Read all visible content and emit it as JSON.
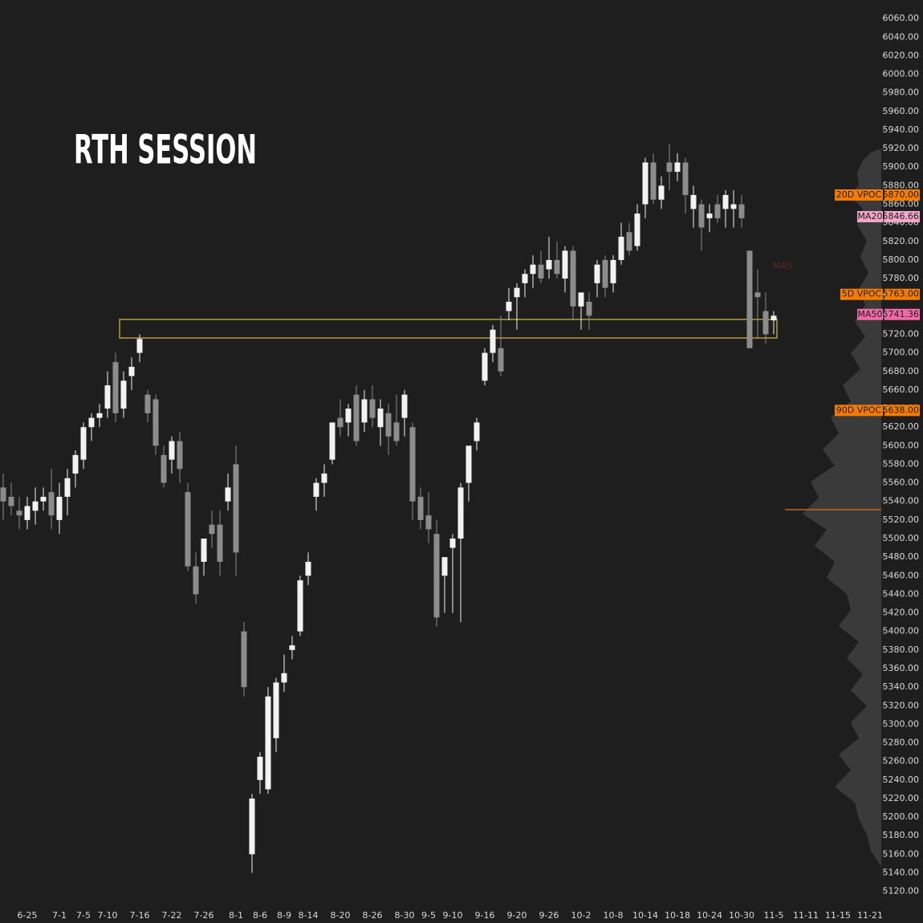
{
  "chart_data": {
    "type": "candlestick",
    "title": "RTH SESSION",
    "annotations": [
      "MA5"
    ],
    "categories": [
      null,
      null,
      null,
      "6-25",
      null,
      null,
      null,
      "7-1",
      null,
      null,
      "7-5",
      null,
      null,
      "7-10",
      null,
      null,
      null,
      "7-16",
      null,
      null,
      null,
      "7-22",
      null,
      null,
      null,
      "7-26",
      null,
      null,
      null,
      "8-1",
      null,
      null,
      "8-6",
      null,
      null,
      "8-9",
      null,
      null,
      "8-14",
      null,
      null,
      null,
      "8-20",
      null,
      null,
      null,
      "8-26",
      null,
      null,
      null,
      "8-30",
      null,
      null,
      "9-5",
      null,
      null,
      "9-10",
      null,
      null,
      null,
      "9-16",
      null,
      null,
      null,
      "9-20",
      null,
      null,
      null,
      "9-26",
      null,
      null,
      null,
      "10-2",
      null,
      null,
      null,
      "10-8",
      null,
      null,
      null,
      "10-14",
      null,
      null,
      null,
      "10-18",
      null,
      null,
      null,
      "10-24",
      null,
      null,
      null,
      "10-30",
      null,
      null,
      null,
      "11-5",
      null,
      null,
      null,
      "11-11",
      null,
      null,
      null,
      "11-15",
      null,
      null,
      null,
      "11-21"
    ],
    "open": [
      5555,
      5545,
      5530,
      5520,
      5530,
      5540,
      5550,
      5520,
      5545,
      5570,
      5585,
      5620,
      5630,
      5640,
      5690,
      5640,
      5675,
      5700,
      5655,
      5650,
      5590,
      5585,
      5605,
      5550,
      5470,
      5475,
      5515,
      5515,
      5540,
      5580,
      5400,
      5160,
      5240,
      5230,
      5285,
      5345,
      5380,
      5400,
      5460,
      5545,
      5560,
      5585,
      5630,
      5625,
      5655,
      5625,
      5650,
      5620,
      5635,
      5625,
      5630,
      5620,
      5545,
      5525,
      5505,
      5460,
      5490,
      5500,
      5560,
      5605,
      5670,
      5700,
      5705,
      5745,
      5760,
      5775,
      5785,
      5795,
      5790,
      5800,
      5780,
      5810,
      5750,
      5755,
      5775,
      5800,
      5775,
      5800,
      5830,
      5815,
      5860,
      5905,
      5865,
      5905,
      5895,
      5905,
      5855,
      5860,
      5845,
      5860,
      5855,
      5855,
      5860,
      5810,
      5765,
      5745,
      5735,
      null,
      null,
      null,
      null,
      null,
      null,
      null,
      null,
      null,
      null,
      null,
      null
    ],
    "high": [
      5570,
      5560,
      5545,
      5545,
      5555,
      5555,
      5575,
      5560,
      5575,
      5595,
      5625,
      5635,
      5645,
      5680,
      5700,
      5680,
      5695,
      5720,
      5660,
      5655,
      5600,
      5610,
      5615,
      5560,
      5485,
      5500,
      5530,
      5530,
      5570,
      5600,
      5410,
      5225,
      5270,
      5340,
      5350,
      5375,
      5395,
      5460,
      5485,
      5565,
      5580,
      5625,
      5650,
      5645,
      5665,
      5660,
      5665,
      5650,
      5645,
      5655,
      5660,
      5625,
      5555,
      5550,
      5520,
      5480,
      5505,
      5560,
      5600,
      5630,
      5705,
      5730,
      5740,
      5770,
      5775,
      5790,
      5805,
      5810,
      5825,
      5820,
      5815,
      5815,
      5765,
      5765,
      5800,
      5805,
      5805,
      5840,
      5840,
      5860,
      5910,
      5915,
      5890,
      5925,
      5915,
      5910,
      5880,
      5865,
      5860,
      5870,
      5875,
      5875,
      5870,
      5810,
      5790,
      5765,
      5745,
      null,
      null,
      null,
      null,
      null,
      null,
      null,
      null,
      null,
      null,
      null,
      null
    ],
    "low": [
      5520,
      5525,
      5510,
      5510,
      5515,
      5530,
      5510,
      5505,
      5525,
      5555,
      5575,
      5605,
      5620,
      5630,
      5625,
      5630,
      5660,
      5690,
      5625,
      5590,
      5555,
      5570,
      5560,
      5465,
      5430,
      5460,
      5490,
      5460,
      5530,
      5460,
      5330,
      5140,
      5225,
      5225,
      5270,
      5335,
      5370,
      5395,
      5450,
      5530,
      5545,
      5580,
      5610,
      5610,
      5600,
      5615,
      5620,
      5600,
      5590,
      5600,
      5610,
      5520,
      5510,
      5495,
      5405,
      5420,
      5420,
      5410,
      5540,
      5595,
      5665,
      5690,
      5675,
      5735,
      5725,
      5760,
      5770,
      5775,
      5780,
      5780,
      5765,
      5735,
      5725,
      5725,
      5760,
      5760,
      5765,
      5795,
      5805,
      5810,
      5845,
      5860,
      5855,
      5875,
      5885,
      5850,
      5835,
      5810,
      5830,
      5840,
      5835,
      5835,
      5835,
      5705,
      5715,
      5710,
      5720,
      null,
      null,
      null,
      null,
      null,
      null,
      null,
      null,
      null,
      null,
      null,
      null
    ],
    "close": [
      5540,
      5535,
      5525,
      5535,
      5540,
      5545,
      5525,
      5545,
      5565,
      5590,
      5620,
      5630,
      5635,
      5665,
      5635,
      5670,
      5685,
      5715,
      5635,
      5600,
      5560,
      5605,
      5575,
      5470,
      5440,
      5500,
      5505,
      5475,
      5555,
      5485,
      5340,
      5220,
      5265,
      5330,
      5345,
      5355,
      5385,
      5455,
      5475,
      5560,
      5570,
      5625,
      5620,
      5640,
      5605,
      5650,
      5630,
      5640,
      5610,
      5605,
      5655,
      5540,
      5520,
      5510,
      5415,
      5480,
      5500,
      5555,
      5600,
      5625,
      5700,
      5725,
      5680,
      5755,
      5770,
      5785,
      5795,
      5780,
      5800,
      5785,
      5810,
      5750,
      5765,
      5740,
      5795,
      5770,
      5800,
      5825,
      5810,
      5850,
      5905,
      5865,
      5880,
      5895,
      5905,
      5870,
      5870,
      5835,
      5850,
      5845,
      5870,
      5860,
      5845,
      5705,
      5760,
      5720,
      5740,
      null,
      null,
      null,
      null,
      null,
      null,
      null,
      null,
      null,
      null,
      null,
      null
    ],
    "up_color": "#f2f2f2",
    "down_color": "#8c8c8c",
    "ylim": [
      5105,
      6080
    ],
    "yticks": [
      {
        "value": 6060,
        "label": "6060.00"
      },
      {
        "value": 6040,
        "label": "6040.00"
      },
      {
        "value": 6020,
        "label": "6020.00"
      },
      {
        "value": 6000,
        "label": "6000.00"
      },
      {
        "value": 5980,
        "label": "5980.00"
      },
      {
        "value": 5960,
        "label": "5960.00"
      },
      {
        "value": 5940,
        "label": "5940.00"
      },
      {
        "value": 5920,
        "label": "5920.00"
      },
      {
        "value": 5900,
        "label": "5900.00"
      },
      {
        "value": 5880,
        "label": "5880.00"
      },
      {
        "value": 5860,
        "label": "5860.00"
      },
      {
        "value": 5840,
        "label": "5840.00"
      },
      {
        "value": 5820,
        "label": "5820.00"
      },
      {
        "value": 5800,
        "label": "5800.00"
      },
      {
        "value": 5780,
        "label": "5780.00"
      },
      {
        "value": 5760,
        "label": "5760.00"
      },
      {
        "value": 5740,
        "label": "5740.00"
      },
      {
        "value": 5720,
        "label": "5720.00"
      },
      {
        "value": 5700,
        "label": "5700.00"
      },
      {
        "value": 5680,
        "label": "5680.00"
      },
      {
        "value": 5660,
        "label": "5660.00"
      },
      {
        "value": 5640,
        "label": "5640.00"
      },
      {
        "value": 5620,
        "label": "5620.00"
      },
      {
        "value": 5600,
        "label": "5600.00"
      },
      {
        "value": 5580,
        "label": "5580.00"
      },
      {
        "value": 5560,
        "label": "5560.00"
      },
      {
        "value": 5540,
        "label": "5540.00"
      },
      {
        "value": 5520,
        "label": "5520.00"
      },
      {
        "value": 5500,
        "label": "5500.00"
      },
      {
        "value": 5480,
        "label": "5480.00"
      },
      {
        "value": 5460,
        "label": "5460.00"
      },
      {
        "value": 5440,
        "label": "5440.00"
      },
      {
        "value": 5420,
        "label": "5420.00"
      },
      {
        "value": 5400,
        "label": "5400.00"
      },
      {
        "value": 5380,
        "label": "5380.00"
      },
      {
        "value": 5360,
        "label": "5360.00"
      },
      {
        "value": 5340,
        "label": "5340.00"
      },
      {
        "value": 5320,
        "label": "5320.00"
      },
      {
        "value": 5300,
        "label": "5300.00"
      },
      {
        "value": 5280,
        "label": "5280.00"
      },
      {
        "value": 5260,
        "label": "5260.00"
      },
      {
        "value": 5240,
        "label": "5240.00"
      },
      {
        "value": 5220,
        "label": "5220.00"
      },
      {
        "value": 5200,
        "label": "5200.00"
      },
      {
        "value": 5180,
        "label": "5180.00"
      },
      {
        "value": 5160,
        "label": "5160.00"
      },
      {
        "value": 5140,
        "label": "5140.00"
      },
      {
        "value": 5120,
        "label": "5120.00"
      }
    ],
    "zone": [
      5716,
      5736
    ],
    "zone_color": "#b49a3c",
    "levels": [
      {
        "name": "20D VPOC",
        "value": 5870,
        "value_label": "5870.00",
        "color": "#f57c00"
      },
      {
        "name": "MA20",
        "value": 5846.66,
        "value_label": "5846.66",
        "color": "#f4a6c8"
      },
      {
        "name": "5D VPOC",
        "value": 5763,
        "value_label": "5763.00",
        "color": "#f57c00"
      },
      {
        "name": "MA50",
        "value": 5741.36,
        "value_label": "5741.36",
        "color": "#f06aa8"
      },
      {
        "name": "90D VPOC",
        "value": 5638,
        "value_label": "5638.00",
        "color": "#f57c00"
      }
    ]
  }
}
